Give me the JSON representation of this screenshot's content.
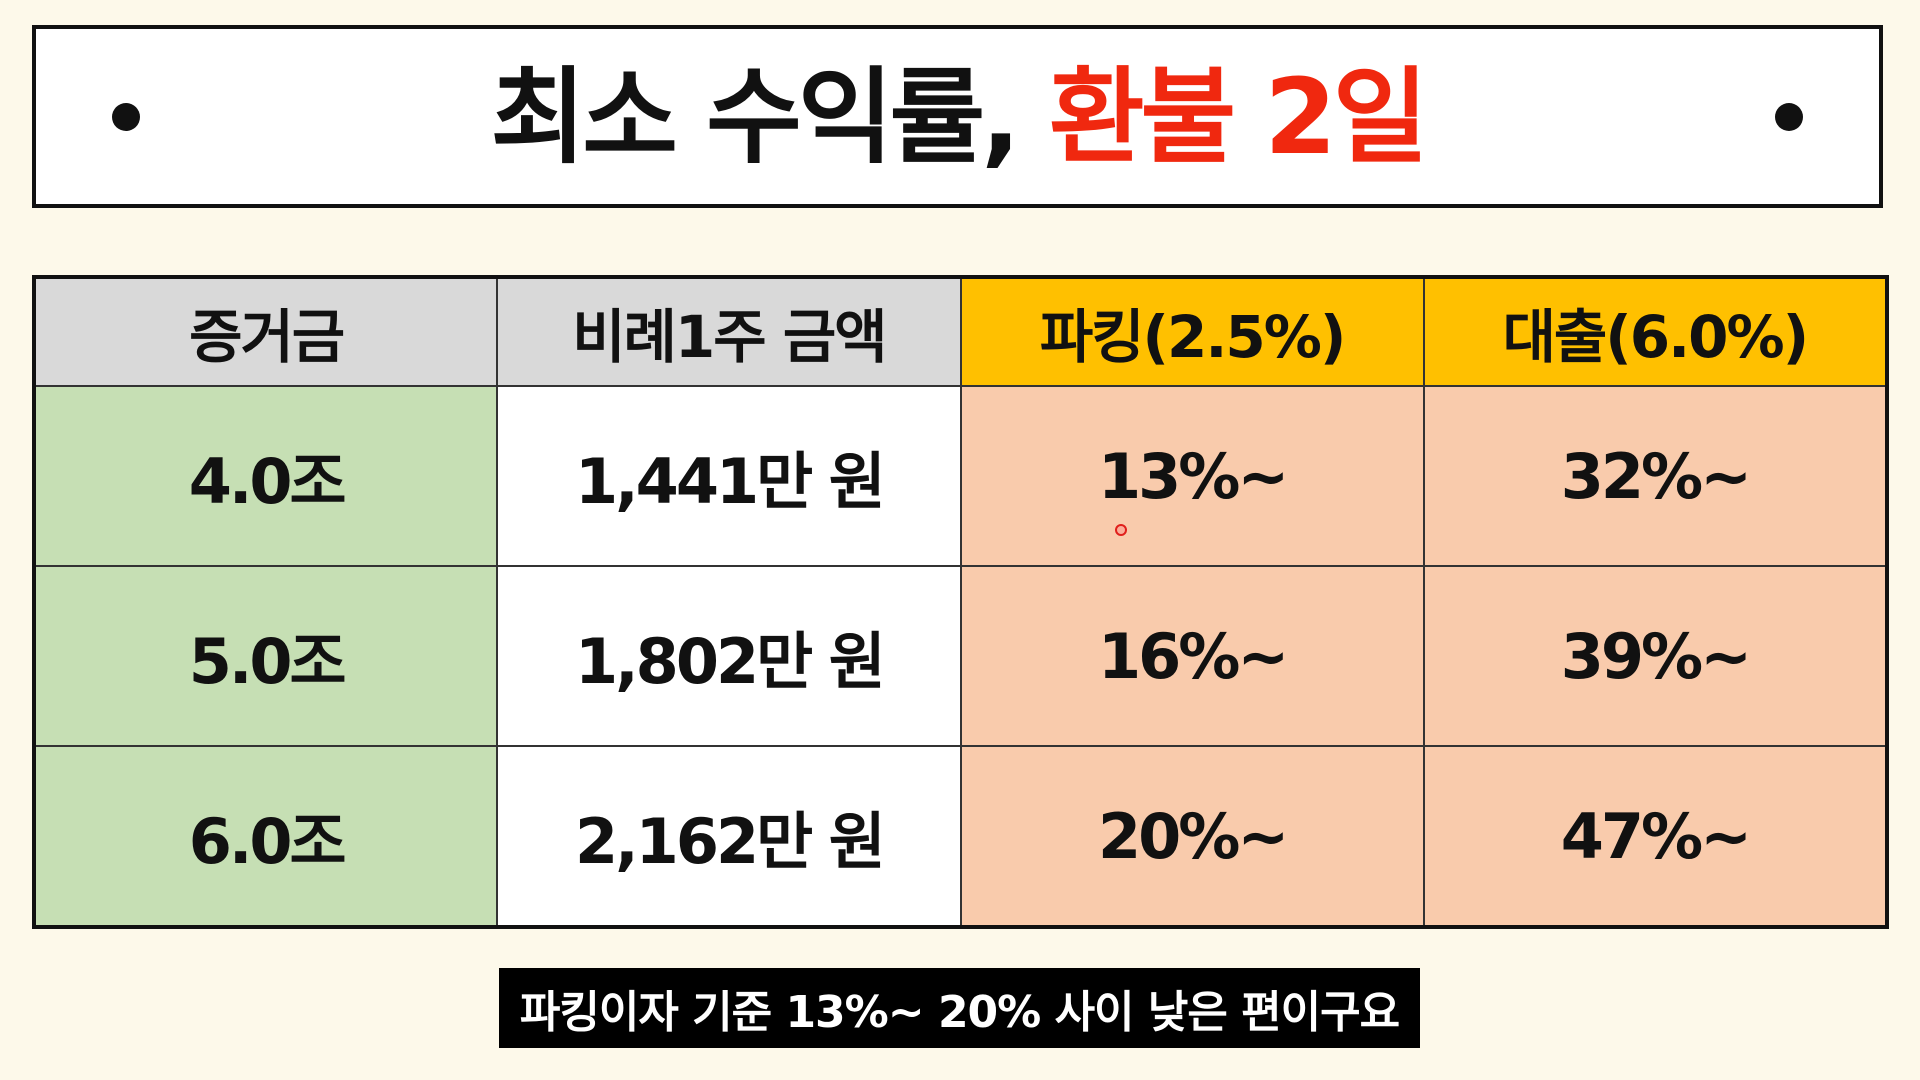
{
  "title": {
    "main": "최소 수익률, ",
    "accent": "환불 2일"
  },
  "table": {
    "headers": [
      "증거금",
      "비례1주 금액",
      "파킹(2.5%)",
      "대출(6.0%)"
    ],
    "rows": [
      [
        "4.0조",
        "1,441만 원",
        "13%~",
        "32%~"
      ],
      [
        "5.0조",
        "1,802만 원",
        "16%~",
        "39%~"
      ],
      [
        "6.0조",
        "2,162만 원",
        "20%~",
        "47%~"
      ]
    ]
  },
  "caption": "파킹이자 기준 13%~ 20% 사이 낮은 편이구요",
  "colors": {
    "background": "#fdf9ea",
    "title_accent": "#f0280f",
    "header_gray": "#d9d9d9",
    "header_gold": "#ffc000",
    "margin_column": "#c6dfb4",
    "amount_column": "#ffffff",
    "rate_columns": "#f9cbac",
    "caption_bg": "#000000"
  }
}
